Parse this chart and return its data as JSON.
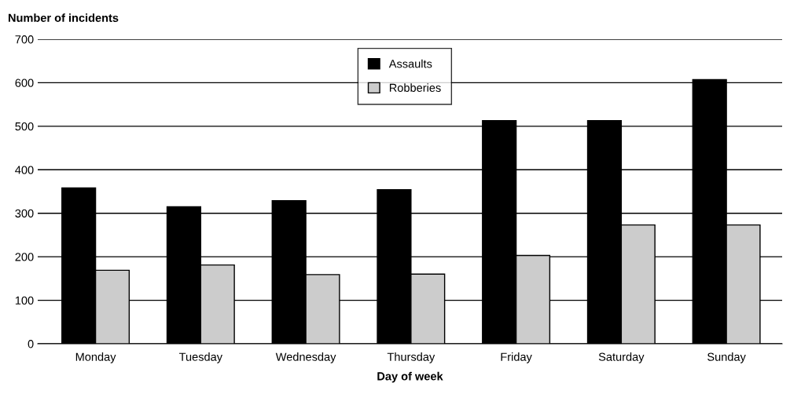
{
  "chart_data": {
    "type": "bar",
    "ylabel": "Number of incidents",
    "xlabel": "Day of week",
    "categories": [
      "Monday",
      "Tuesday",
      "Wednesday",
      "Thursday",
      "Friday",
      "Saturday",
      "Sunday"
    ],
    "series": [
      {
        "name": "Assaults",
        "color": "#000000",
        "values": [
          358,
          315,
          329,
          354,
          513,
          513,
          607
        ]
      },
      {
        "name": "Robberies",
        "color": "#cccccc",
        "values": [
          169,
          181,
          159,
          160,
          203,
          273,
          273
        ]
      }
    ],
    "ylim": [
      0,
      700
    ],
    "yticks": [
      0,
      100,
      200,
      300,
      400,
      500,
      600,
      700
    ],
    "grid": "y",
    "legend": "top"
  }
}
